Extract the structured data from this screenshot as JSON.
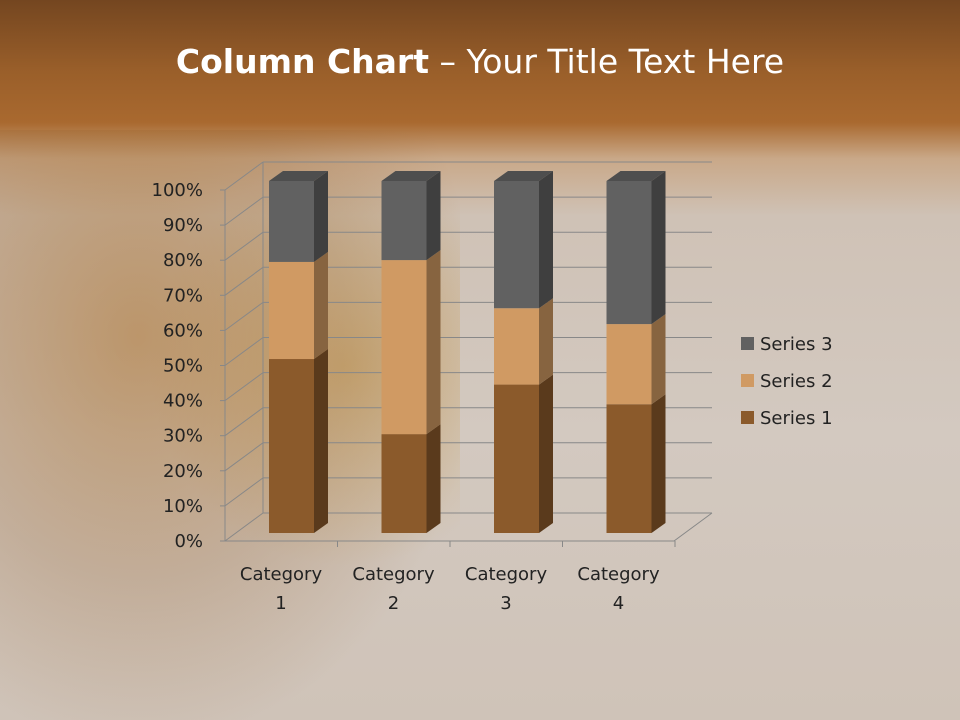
{
  "slide": {
    "title_bold": "Column Chart",
    "title_rest": " – Your Title Text Here"
  },
  "chart_data": {
    "type": "bar",
    "stacking": "percent",
    "style": "3d-column",
    "title": "",
    "categories": [
      "Category 1",
      "Category 2",
      "Category 3",
      "Category 4"
    ],
    "category_lines": [
      [
        "Category",
        "1"
      ],
      [
        "Category",
        "2"
      ],
      [
        "Category",
        "3"
      ],
      [
        "Category",
        "4"
      ]
    ],
    "series": [
      {
        "name": "Series 1",
        "values": [
          4.3,
          2.5,
          3.5,
          4.5
        ],
        "color": "#8b5a2b"
      },
      {
        "name": "Series 2",
        "values": [
          2.4,
          4.4,
          1.8,
          2.8
        ],
        "color": "#d09a63"
      },
      {
        "name": "Series 3",
        "values": [
          2,
          2,
          3,
          5
        ],
        "color": "#616161"
      }
    ],
    "yticks": [
      "0%",
      "10%",
      "20%",
      "30%",
      "40%",
      "50%",
      "60%",
      "70%",
      "80%",
      "90%",
      "100%"
    ],
    "ylim": [
      0,
      100
    ],
    "grid": true,
    "legend": "right"
  }
}
